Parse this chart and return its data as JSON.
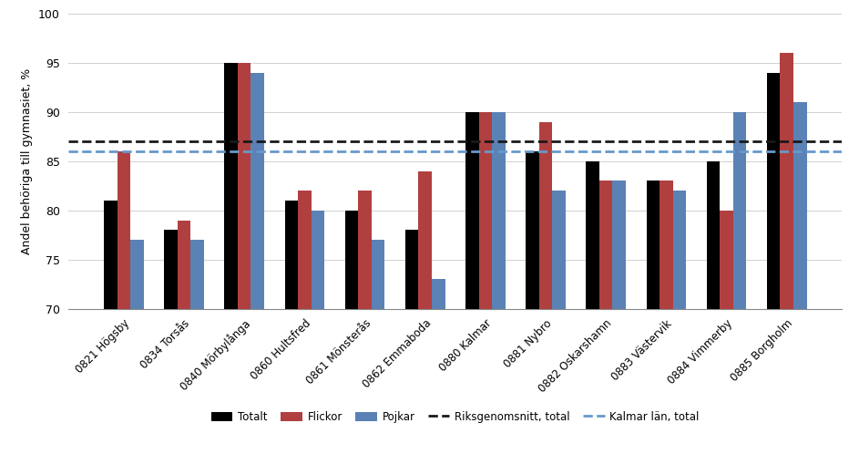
{
  "categories": [
    "0821 Högsby",
    "0834 Torsås",
    "0840 Mörbylånga",
    "0860 Hultsfred",
    "0861 Mönsterås",
    "0862 Emmaboda",
    "0880 Kalmar",
    "0881 Nybro",
    "0882 Oskarshamn",
    "0883 Västervik",
    "0884 Vimmerby",
    "0885 Borgholm"
  ],
  "totalt": [
    81,
    78,
    95,
    81,
    80,
    78,
    90,
    86,
    85,
    83,
    85,
    94
  ],
  "flickor": [
    86,
    79,
    95,
    82,
    82,
    84,
    90,
    89,
    83,
    83,
    80,
    96
  ],
  "pojkar": [
    77,
    77,
    94,
    80,
    77,
    73,
    90,
    82,
    83,
    82,
    90,
    91
  ],
  "riksgenomsnitt": 87,
  "kalmar_lan": 86,
  "color_totalt": "#000000",
  "color_flickor": "#b04040",
  "color_pojkar": "#5b82b5",
  "color_riksgenomsnitt": "#1a1a1a",
  "color_kalmar_lan": "#6699cc",
  "ylabel": "Andel behöriga till gymnasiet, %",
  "ylim_min": 70,
  "ylim_max": 100,
  "yticks": [
    70,
    75,
    80,
    85,
    90,
    95,
    100
  ],
  "legend_totalt": "Totalt",
  "legend_flickor": "Flickor",
  "legend_pojkar": "Pojkar",
  "legend_riksgenomsnitt": "Riksgenomsnitt, total",
  "legend_kalmar_lan": "Kalmar län, total",
  "background_color": "#ffffff",
  "bar_width": 0.22,
  "fig_width": 9.43,
  "fig_height": 4.98,
  "fig_dpi": 100
}
